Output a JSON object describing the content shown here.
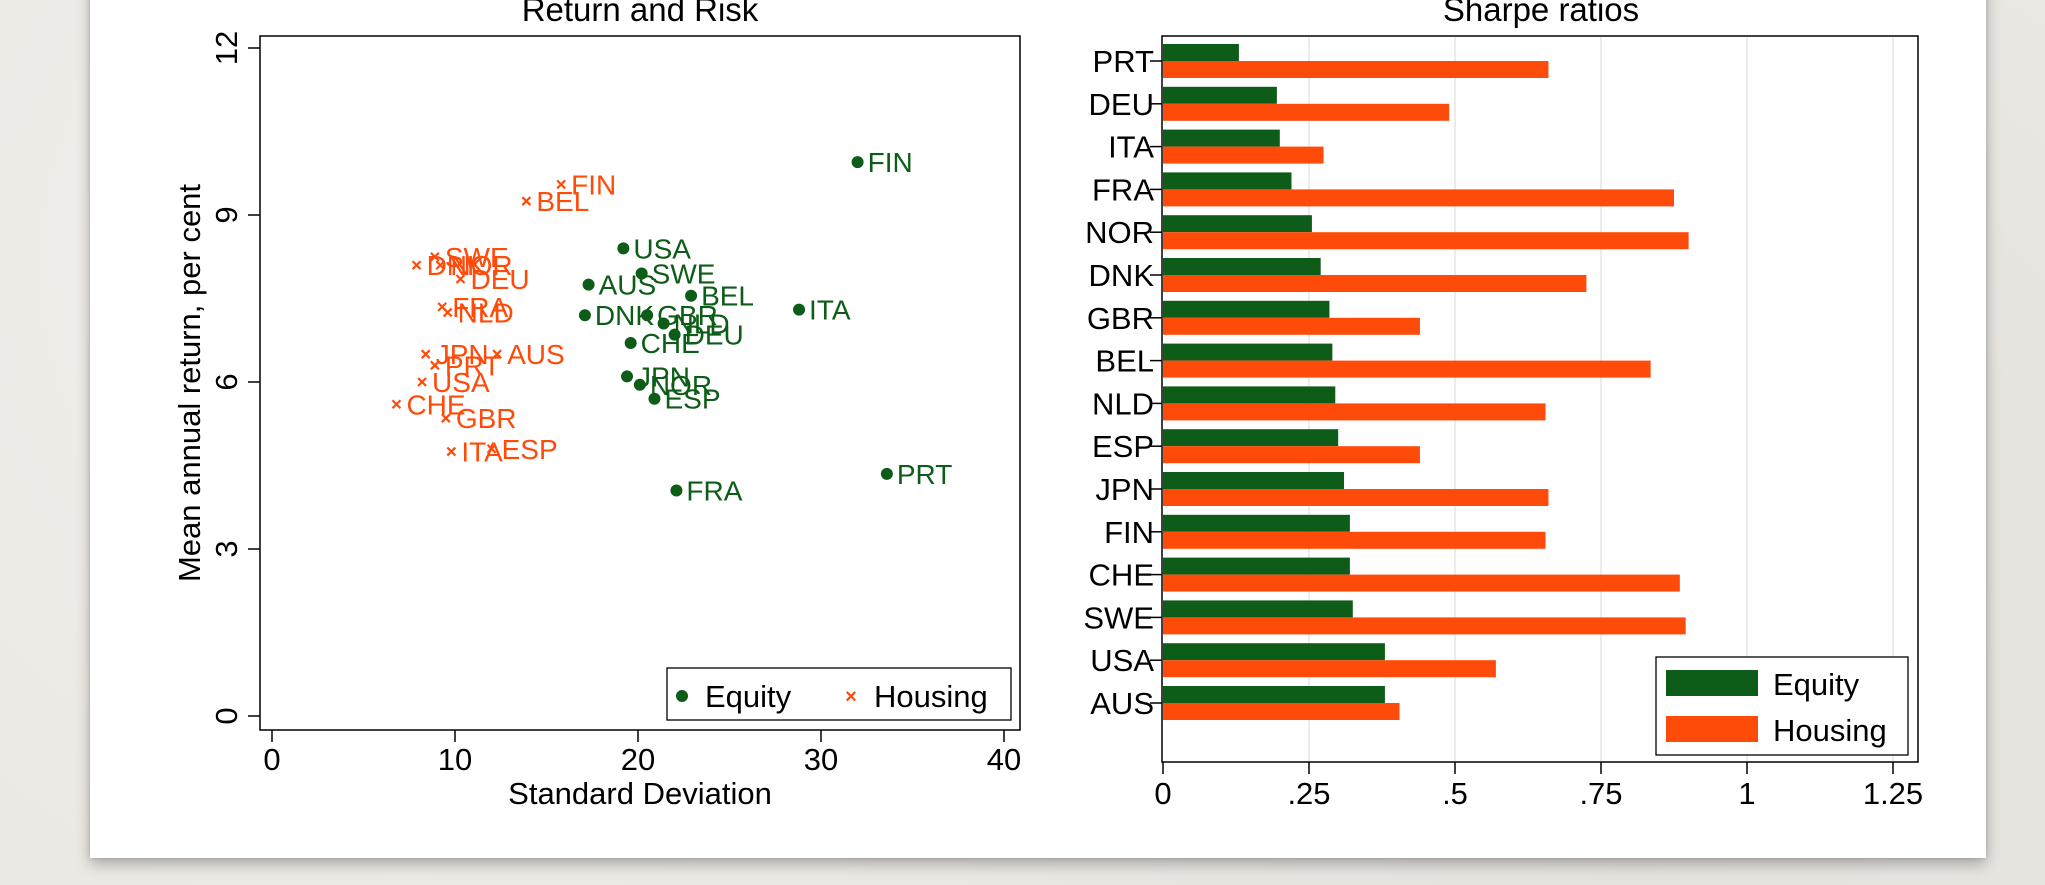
{
  "colors": {
    "equity": "#0d5c17",
    "housing": "#ff4b0a",
    "grid": "#e6e6e6"
  },
  "chart_data": [
    {
      "type": "scatter",
      "title": "Return and Risk",
      "xlabel": "Standard Deviation",
      "ylabel": "Mean annual return, per cent",
      "xlim": [
        0,
        40
      ],
      "ylim": [
        0,
        12
      ],
      "xticks": [
        "0",
        "10",
        "20",
        "30",
        "40"
      ],
      "yticks": [
        "0",
        "3",
        "6",
        "9",
        "12"
      ],
      "legend": "bottom-right",
      "series": [
        {
          "name": "Equity",
          "marker": "circle",
          "points": [
            {
              "label": "FIN",
              "x": 32.0,
              "y": 9.95
            },
            {
              "label": "USA",
              "x": 19.2,
              "y": 8.4
            },
            {
              "label": "SWE",
              "x": 20.2,
              "y": 7.95
            },
            {
              "label": "AUS",
              "x": 17.3,
              "y": 7.75
            },
            {
              "label": "BEL",
              "x": 22.9,
              "y": 7.55
            },
            {
              "label": "ITA",
              "x": 28.8,
              "y": 7.3
            },
            {
              "label": "DNK",
              "x": 17.1,
              "y": 7.2
            },
            {
              "label": "GBR",
              "x": 20.5,
              "y": 7.2
            },
            {
              "label": "NLD",
              "x": 21.4,
              "y": 7.05
            },
            {
              "label": "DEU",
              "x": 22.0,
              "y": 6.85
            },
            {
              "label": "CHE",
              "x": 19.6,
              "y": 6.7
            },
            {
              "label": "JPN",
              "x": 19.4,
              "y": 6.1
            },
            {
              "label": "NOR",
              "x": 20.1,
              "y": 5.95
            },
            {
              "label": "ESP",
              "x": 20.9,
              "y": 5.7
            },
            {
              "label": "PRT",
              "x": 33.6,
              "y": 4.35
            },
            {
              "label": "FRA",
              "x": 22.1,
              "y": 4.05
            }
          ]
        },
        {
          "name": "Housing",
          "marker": "x",
          "points": [
            {
              "label": "FIN",
              "x": 15.8,
              "y": 9.55
            },
            {
              "label": "BEL",
              "x": 13.9,
              "y": 9.25
            },
            {
              "label": "SWE",
              "x": 8.9,
              "y": 8.25
            },
            {
              "label": "NOR",
              "x": 9.2,
              "y": 8.1
            },
            {
              "label": "DNK",
              "x": 7.9,
              "y": 8.1
            },
            {
              "label": "DEU",
              "x": 10.3,
              "y": 7.85
            },
            {
              "label": "FRA",
              "x": 9.3,
              "y": 7.35
            },
            {
              "label": "NLD",
              "x": 9.6,
              "y": 7.25
            },
            {
              "label": "JPN",
              "x": 8.4,
              "y": 6.5
            },
            {
              "label": "AUS",
              "x": 12.3,
              "y": 6.5
            },
            {
              "label": "PRT",
              "x": 8.9,
              "y": 6.3
            },
            {
              "label": "USA",
              "x": 8.2,
              "y": 6.0
            },
            {
              "label": "CHE",
              "x": 6.8,
              "y": 5.6
            },
            {
              "label": "GBR",
              "x": 9.5,
              "y": 5.35
            },
            {
              "label": "ITA",
              "x": 9.8,
              "y": 4.75
            },
            {
              "label": "ESP",
              "x": 12.0,
              "y": 4.8
            }
          ]
        }
      ]
    },
    {
      "type": "bar",
      "orientation": "horizontal",
      "title": "Sharpe ratios",
      "xlim": [
        0,
        1.25
      ],
      "xticks": [
        "0",
        ".25",
        ".5",
        ".75",
        "1",
        "1.25"
      ],
      "grid": true,
      "legend": "bottom-right",
      "categories": [
        "PRT",
        "DEU",
        "ITA",
        "FRA",
        "NOR",
        "DNK",
        "GBR",
        "BEL",
        "NLD",
        "ESP",
        "JPN",
        "FIN",
        "CHE",
        "SWE",
        "USA",
        "AUS"
      ],
      "series": [
        {
          "name": "Equity",
          "values": [
            0.13,
            0.195,
            0.2,
            0.22,
            0.255,
            0.27,
            0.285,
            0.29,
            0.295,
            0.3,
            0.31,
            0.32,
            0.32,
            0.325,
            0.38,
            0.38
          ]
        },
        {
          "name": "Housing",
          "values": [
            0.66,
            0.49,
            0.275,
            0.875,
            0.9,
            0.725,
            0.44,
            0.835,
            0.655,
            0.44,
            0.66,
            0.655,
            0.885,
            0.895,
            0.57,
            0.405
          ]
        }
      ]
    }
  ]
}
